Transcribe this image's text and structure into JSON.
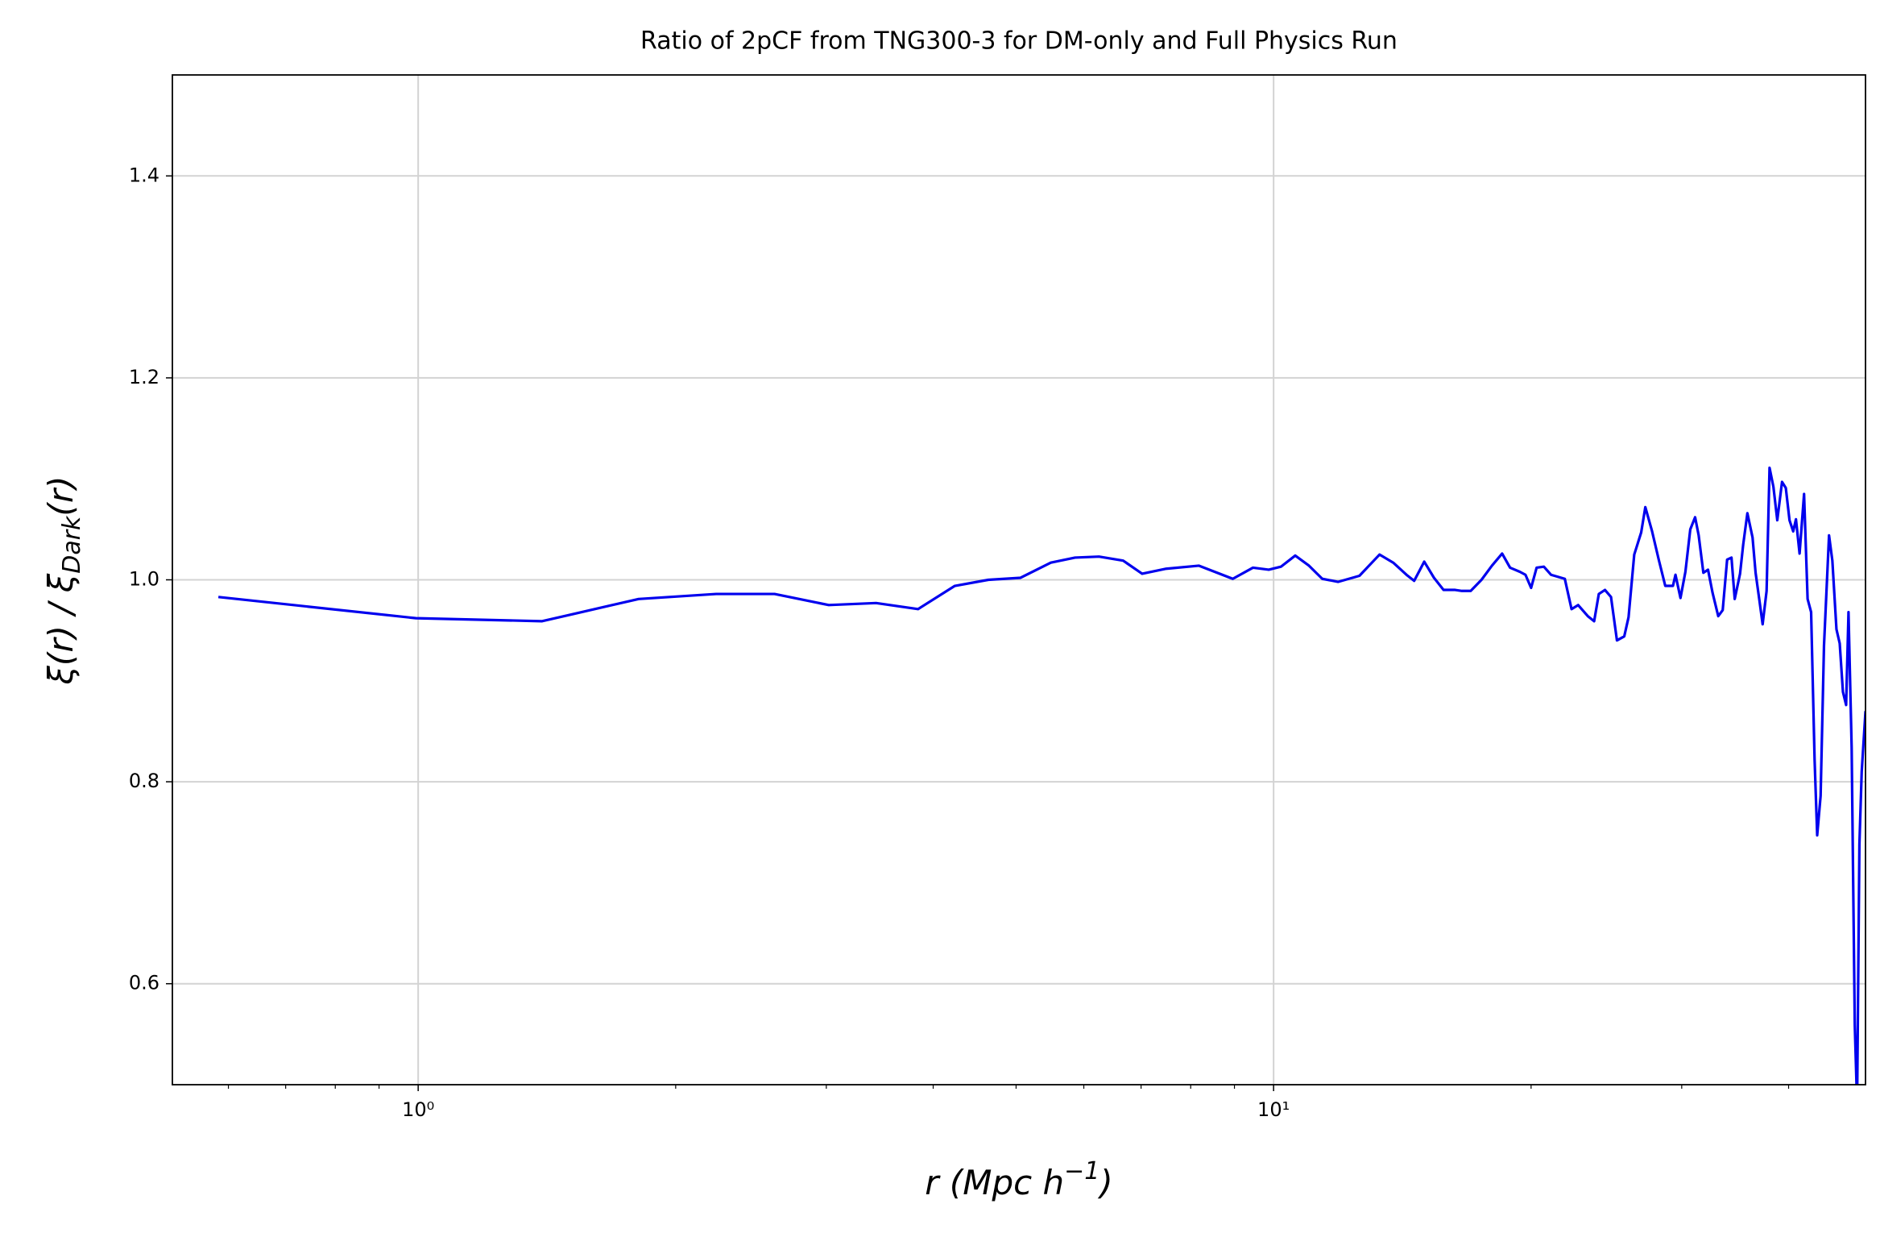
{
  "chart_data": {
    "type": "line",
    "title": "Ratio of 2pCF from TNG300-3 for DM-only and Full Physics Run",
    "xlabel": [
      "r (Mpc h",
      "−1",
      ")"
    ],
    "ylabel": [
      "ξ(r) / ξ",
      "Dark",
      "(r)"
    ],
    "color": "#0000ee",
    "xscale": "log",
    "grid": true,
    "xlim": [
      0.516,
      49.2
    ],
    "ylim": [
      0.5,
      1.5
    ],
    "xticks": [
      {
        "value": 1,
        "label": "10⁰"
      },
      {
        "value": 10,
        "label": "10¹"
      }
    ],
    "xminorticks": [
      0.6,
      0.7,
      0.8,
      0.9,
      2,
      3,
      4,
      5,
      6,
      7,
      8,
      9,
      20,
      30,
      40
    ],
    "yticks": [
      0.6,
      0.8,
      {
        "value": 1.0,
        "label": "1.0"
      },
      1.2,
      1.4
    ],
    "x": [
      0.584,
      0.994,
      1.396,
      1.81,
      2.23,
      2.61,
      3.02,
      3.43,
      3.84,
      4.24,
      4.64,
      5.06,
      5.49,
      5.86,
      6.25,
      6.67,
      7.02,
      7.49,
      8.18,
      8.96,
      9.46,
      9.87,
      10.2,
      10.6,
      11.0,
      11.4,
      11.9,
      12.6,
      13.3,
      13.8,
      14.3,
      14.6,
      15.0,
      15.4,
      15.8,
      16.3,
      16.6,
      17.0,
      17.5,
      18.0,
      18.5,
      18.9,
      19.4,
      19.7,
      20.0,
      20.3,
      20.7,
      21.1,
      21.9,
      22.3,
      22.7,
      23.3,
      23.7,
      24.0,
      24.4,
      24.8,
      25.2,
      25.7,
      26.0,
      26.4,
      26.9,
      27.2,
      27.7,
      28.2,
      28.7,
      29.3,
      29.5,
      29.9,
      30.3,
      30.7,
      31.1,
      31.4,
      31.8,
      32.2,
      32.6,
      33.1,
      33.5,
      33.9,
      34.3,
      34.6,
      35.1,
      35.4,
      35.8,
      36.3,
      36.6,
      37.0,
      37.3,
      37.7,
      38.0,
      38.4,
      38.8,
      39.3,
      39.7,
      40.1,
      40.5,
      40.8,
      41.2,
      41.7,
      42.1,
      42.5,
      42.9,
      43.2,
      43.6,
      44.0,
      44.6,
      45.0,
      45.5,
      45.9,
      46.3,
      46.7,
      47.0,
      47.4,
      47.8,
      48.1,
      48.4,
      48.7,
      49.2
    ],
    "values": [
      0.983,
      0.962,
      0.959,
      0.981,
      0.986,
      0.986,
      0.975,
      0.977,
      0.971,
      0.994,
      1.0,
      1.002,
      1.017,
      1.022,
      1.023,
      1.019,
      1.006,
      1.011,
      1.014,
      1.001,
      1.012,
      1.01,
      1.013,
      1.024,
      1.014,
      1.001,
      0.998,
      1.004,
      1.025,
      1.017,
      1.005,
      0.999,
      1.018,
      1.002,
      0.99,
      0.99,
      0.989,
      0.989,
      1.0,
      1.014,
      1.026,
      1.012,
      1.008,
      1.005,
      0.992,
      1.012,
      1.013,
      1.005,
      1.001,
      0.971,
      0.975,
      0.964,
      0.959,
      0.986,
      0.99,
      0.983,
      0.94,
      0.944,
      0.963,
      1.025,
      1.047,
      1.072,
      1.048,
      1.02,
      0.994,
      0.994,
      1.005,
      0.982,
      1.008,
      1.05,
      1.062,
      1.044,
      1.007,
      1.01,
      0.987,
      0.964,
      0.97,
      1.02,
      1.022,
      0.981,
      1.006,
      1.035,
      1.066,
      1.042,
      1.007,
      0.978,
      0.956,
      0.989,
      1.111,
      1.092,
      1.059,
      1.097,
      1.091,
      1.059,
      1.048,
      1.06,
      1.026,
      1.085,
      0.981,
      0.968,
      0.822,
      0.747,
      0.786,
      0.935,
      1.044,
      1.019,
      0.951,
      0.937,
      0.889,
      0.876,
      0.968,
      0.834,
      0.559,
      0.48,
      0.738,
      0.81,
      0.87
    ]
  }
}
